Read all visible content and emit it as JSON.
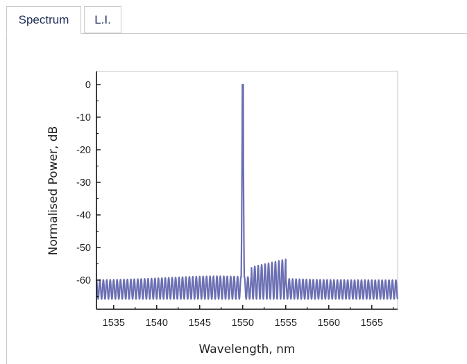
{
  "tabs": [
    {
      "label": "Spectrum",
      "active": true
    },
    {
      "label": "L.I.",
      "active": false
    }
  ],
  "chart_data": {
    "type": "line",
    "xlabel": "Wavelength, nm",
    "ylabel": "Normalised Power, dB",
    "xlim": [
      1533,
      1568
    ],
    "ylim": [
      -70,
      2
    ],
    "xticks": [
      1535,
      1540,
      1545,
      1550,
      1555,
      1560,
      1565
    ],
    "yticks": [
      0,
      -10,
      -20,
      -30,
      -40,
      -50,
      -60
    ],
    "grid": false,
    "color": "#6b6fb3",
    "series": [
      {
        "peak_wavelength": 1550,
        "peak_power": 0,
        "noise_floor_range": [
          -65.5,
          -59
        ],
        "mode_spacing_nm": 0.4
      }
    ]
  }
}
